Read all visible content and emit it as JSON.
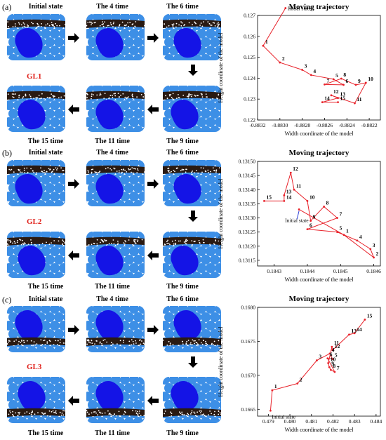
{
  "panels": [
    {
      "label": "(a)",
      "gl_label": "GL1",
      "titles": [
        "Initial state",
        "The 4 time",
        "The 6 time",
        "The 15 time",
        "The 11 time",
        "The 9 time"
      ]
    },
    {
      "label": "(b)",
      "gl_label": "GL2",
      "titles": [
        "Initial state",
        "The 4 time",
        "The 6 time",
        "The 15 time",
        "The 11 time",
        "The 9 time"
      ]
    },
    {
      "label": "(c)",
      "gl_label": "GL3",
      "titles": [
        "Initial state",
        "The 4 time",
        "The 6 time",
        "The 15 time",
        "The 11 time",
        "The 9 time"
      ]
    }
  ],
  "colors": {
    "particle_blue": "#3d8fe6",
    "big_particle": "#1414e6",
    "layer_dark": "#2a1a12",
    "trajectory_red": "#e8222a",
    "arrow_blue": "#2b3fd6",
    "gl_red": "#e0221c"
  },
  "chart_data": [
    {
      "type": "line",
      "title": "Moving trajectory",
      "xlabel": "Width coordinate of the model",
      "ylabel": "Height coordinate of the model",
      "xlim": [
        -0.8832,
        -0.8821
      ],
      "ylim": [
        0.122,
        0.127
      ],
      "xticks": [
        "-0.8832",
        "-0.8830",
        "-0.8828",
        "-0.8826",
        "-0.8824",
        "-0.8822"
      ],
      "yticks": [
        "0.122",
        "0.123",
        "0.124",
        "0.125",
        "0.126",
        "0.127"
      ],
      "xtick_values": [
        -0.8832,
        -0.883,
        -0.8828,
        -0.8826,
        -0.8824,
        -0.8822
      ],
      "ytick_values": [
        0.122,
        0.123,
        0.124,
        0.125,
        0.126,
        0.127
      ],
      "initial_label": "Initial state",
      "points": [
        {
          "label": "",
          "x": -0.88295,
          "y": 0.12735
        },
        {
          "label": "1",
          "x": -0.88315,
          "y": 0.12555
        },
        {
          "label": "2",
          "x": -0.883,
          "y": 0.12475
        },
        {
          "label": "3",
          "x": -0.8828,
          "y": 0.1244
        },
        {
          "label": "4",
          "x": -0.88272,
          "y": 0.12415
        },
        {
          "label": "5",
          "x": -0.88252,
          "y": 0.12395
        },
        {
          "label": "6",
          "x": -0.88243,
          "y": 0.12368
        },
        {
          "label": "7",
          "x": -0.8826,
          "y": 0.1237
        },
        {
          "label": "8",
          "x": -0.88245,
          "y": 0.12398
        },
        {
          "label": "9",
          "x": -0.88232,
          "y": 0.12368
        },
        {
          "label": "10",
          "x": -0.88223,
          "y": 0.12378
        },
        {
          "label": "11",
          "x": -0.88233,
          "y": 0.1228
        },
        {
          "label": "12",
          "x": -0.88254,
          "y": 0.12318
        },
        {
          "label": "13",
          "x": -0.88248,
          "y": 0.12305
        },
        {
          "label": "14",
          "x": -0.88262,
          "y": 0.12285
        },
        {
          "label": "15",
          "x": -0.88248,
          "y": 0.12285
        }
      ]
    },
    {
      "type": "line",
      "title": "Moving trajectory",
      "xlabel": "Width coordinate of the model",
      "ylabel": "Height coordinate of the model",
      "xlim": [
        0.18425,
        0.18462
      ],
      "ylim": [
        0.13113,
        0.1315
      ],
      "xticks": [
        "0.1843",
        "0.1844",
        "0.1845",
        "0.1846"
      ],
      "yticks": [
        "0.13115",
        "0.13120",
        "0.13125",
        "0.13130",
        "0.13135",
        "0.13140",
        "0.13145",
        "0.13150"
      ],
      "xtick_values": [
        0.1843,
        0.1844,
        0.1845,
        0.1846
      ],
      "ytick_values": [
        0.13115,
        0.1312,
        0.13125,
        0.1313,
        0.13135,
        0.1314,
        0.13145,
        0.1315
      ],
      "initial_label": "Initial state",
      "points": [
        {
          "label": "",
          "x": 0.184375,
          "y": 0.13133
        },
        {
          "label": "1",
          "x": 0.18451,
          "y": 0.13124
        },
        {
          "label": "2",
          "x": 0.1846,
          "y": 0.13116
        },
        {
          "label": "3",
          "x": 0.18459,
          "y": 0.13119
        },
        {
          "label": "4",
          "x": 0.18455,
          "y": 0.13122
        },
        {
          "label": "5",
          "x": 0.18449,
          "y": 0.13125
        },
        {
          "label": "6",
          "x": 0.1844,
          "y": 0.13126
        },
        {
          "label": "7",
          "x": 0.18449,
          "y": 0.1313
        },
        {
          "label": "8",
          "x": 0.18445,
          "y": 0.13134
        },
        {
          "label": "9",
          "x": 0.18441,
          "y": 0.13129
        },
        {
          "label": "10",
          "x": 0.1844,
          "y": 0.13136
        },
        {
          "label": "11",
          "x": 0.18436,
          "y": 0.1314
        },
        {
          "label": "12",
          "x": 0.18435,
          "y": 0.13146
        },
        {
          "label": "13",
          "x": 0.18433,
          "y": 0.13138
        },
        {
          "label": "14",
          "x": 0.18433,
          "y": 0.13136
        },
        {
          "label": "15",
          "x": 0.18427,
          "y": 0.13136
        }
      ]
    },
    {
      "type": "line",
      "title": "Moving trajectory",
      "xlabel": "Width coordinate of the model",
      "ylabel": "Height coordinate of the model",
      "xlim": [
        0.4785,
        0.4842
      ],
      "ylim": [
        0.1664,
        0.168
      ],
      "xticks": [
        "0.479",
        "0.480",
        "0.481",
        "0.482",
        "0.483",
        "0.484"
      ],
      "yticks": [
        "0.1665",
        "0.1670",
        "0.1675",
        "0.1680"
      ],
      "xtick_values": [
        0.479,
        0.48,
        0.481,
        0.482,
        0.483,
        0.484
      ],
      "ytick_values": [
        0.1665,
        0.167,
        0.1675,
        0.168
      ],
      "initial_label": "Initial state",
      "points": [
        {
          "label": "",
          "x": 0.4791,
          "y": 0.16648
        },
        {
          "label": "1",
          "x": 0.47918,
          "y": 0.16678
        },
        {
          "label": "2",
          "x": 0.48035,
          "y": 0.16688
        },
        {
          "label": "3",
          "x": 0.48125,
          "y": 0.16722
        },
        {
          "label": "4",
          "x": 0.48185,
          "y": 0.16732
        },
        {
          "label": "5",
          "x": 0.48198,
          "y": 0.16724
        },
        {
          "label": "6",
          "x": 0.48175,
          "y": 0.16725
        },
        {
          "label": "7",
          "x": 0.48208,
          "y": 0.16705
        },
        {
          "label": "8",
          "x": 0.4819,
          "y": 0.16708
        },
        {
          "label": "9",
          "x": 0.48183,
          "y": 0.16712
        },
        {
          "label": "10",
          "x": 0.48178,
          "y": 0.16718
        },
        {
          "label": "11",
          "x": 0.48195,
          "y": 0.16742
        },
        {
          "label": "12",
          "x": 0.48198,
          "y": 0.16737
        },
        {
          "label": "13",
          "x": 0.48275,
          "y": 0.1676
        },
        {
          "label": "14",
          "x": 0.483,
          "y": 0.16762
        },
        {
          "label": "15",
          "x": 0.48348,
          "y": 0.16782
        }
      ]
    }
  ]
}
